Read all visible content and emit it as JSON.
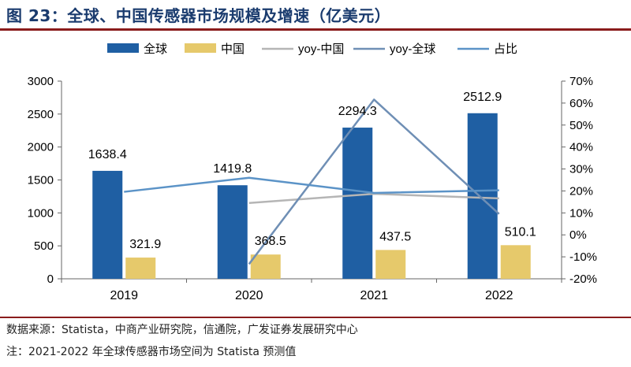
{
  "figure": {
    "title": "图 23：全球、中国传感器市场规模及增速（亿美元）",
    "source": "数据来源：Statista，中商产业研究院，信通院，广发证券发展研究中心",
    "note": "注：2021-2022 年全球传感器市场空间为 Statista 预测值"
  },
  "chart_data": {
    "type": "bar",
    "categories": [
      "2019",
      "2020",
      "2021",
      "2022"
    ],
    "series": [
      {
        "name": "全球",
        "kind": "bar",
        "axis": "left",
        "color": "#1f5fa3",
        "values": [
          1638.4,
          1419.8,
          2294.3,
          2512.9
        ],
        "labels": [
          "1638.4",
          "1419.8",
          "2294.3",
          "2512.9"
        ]
      },
      {
        "name": "中国",
        "kind": "bar",
        "axis": "left",
        "color": "#e6c96b",
        "values": [
          321.9,
          368.5,
          437.5,
          510.1
        ],
        "labels": [
          "321.9",
          "368.5",
          "437.5",
          "510.1"
        ]
      },
      {
        "name": "yoy-中国",
        "kind": "line",
        "axis": "right",
        "color": "#b5b5b5",
        "values": [
          null,
          14.5,
          18.7,
          16.6
        ]
      },
      {
        "name": "yoy-全球",
        "kind": "line",
        "axis": "right",
        "color": "#6f8fb5",
        "values": [
          null,
          -13.3,
          61.6,
          9.5
        ]
      },
      {
        "name": "占比",
        "kind": "line",
        "axis": "right",
        "color": "#5b93c7",
        "values": [
          19.6,
          26.0,
          19.1,
          20.3
        ]
      }
    ],
    "legend": [
      "全球",
      "中国",
      "yoy-中国",
      "yoy-全球",
      "占比"
    ],
    "ylim_left": [
      0,
      3000
    ],
    "yticks_left": [
      0,
      500,
      1000,
      1500,
      2000,
      2500,
      3000
    ],
    "ylim_right": [
      -20,
      70
    ],
    "yticks_right": [
      "-20%",
      "-10%",
      "0%",
      "10%",
      "20%",
      "30%",
      "40%",
      "50%",
      "60%",
      "70%"
    ],
    "grid": false,
    "legend_position": "top"
  }
}
